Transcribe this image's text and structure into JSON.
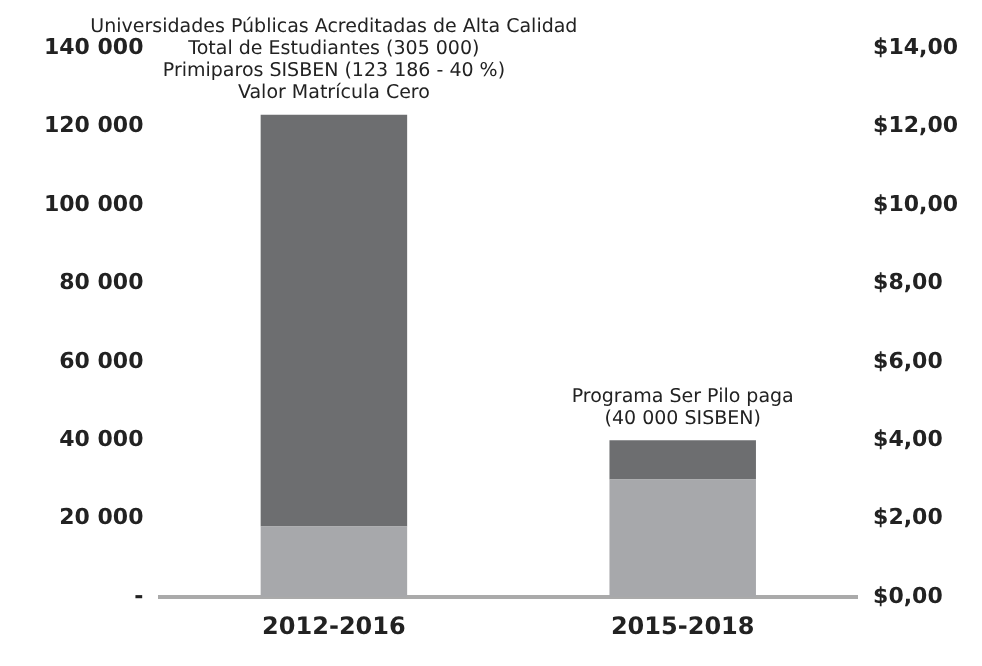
{
  "chart_data": {
    "type": "bar",
    "stacked": true,
    "categories": [
      "2012-2016",
      "2015-2018"
    ],
    "series": [
      {
        "color": "#a7a8ab",
        "values": [
          18000,
          30000
        ]
      },
      {
        "color": "#6d6e70",
        "values": [
          105000,
          10000
        ]
      }
    ],
    "ylim": [
      0,
      140000
    ],
    "yticks": [
      {
        "value": 0,
        "label": "-"
      },
      {
        "value": 20000,
        "label": "20 000"
      },
      {
        "value": 40000,
        "label": "40 000"
      },
      {
        "value": 60000,
        "label": "60 000"
      },
      {
        "value": 80000,
        "label": "80 000"
      },
      {
        "value": 100000,
        "label": "100 000"
      },
      {
        "value": 120000,
        "label": "120 000"
      },
      {
        "value": 140000,
        "label": "140 000"
      }
    ],
    "y2lim": [
      0,
      14
    ],
    "y2ticks": [
      {
        "value": 0,
        "label": "$0,00"
      },
      {
        "value": 2,
        "label": "$2,00"
      },
      {
        "value": 4,
        "label": "$4,00"
      },
      {
        "value": 6,
        "label": "$6,00"
      },
      {
        "value": 8,
        "label": "$8,00"
      },
      {
        "value": 10,
        "label": "$10,00"
      },
      {
        "value": 12,
        "label": "$12,00"
      },
      {
        "value": 14,
        "label": "$14,00"
      }
    ],
    "annotations": [
      {
        "text": "Universidades Públicas Acreditadas de Alta Calidad\nTotal de Estudiantes (305 000)\nPrimiparos SISBEN (123 186 - 40 %)\nValor Matrícula Cero",
        "x": "2012-2016",
        "y": 123000
      },
      {
        "text": "Programa Ser Pilo paga\n(40 000 SISBEN)",
        "x": "2015-2018",
        "y": 40000
      }
    ],
    "grid": false,
    "legend": false
  }
}
